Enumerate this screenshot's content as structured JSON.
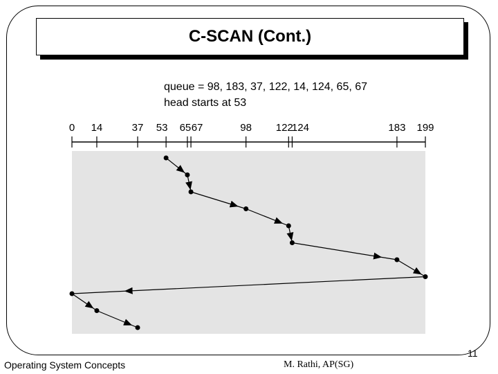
{
  "slide": {
    "title": "C-SCAN (Cont.)",
    "footer_left": "Operating System Concepts",
    "footer_center": "M. Rathi, AP(SG)",
    "page_number": "11"
  },
  "diagram": {
    "queue_text": "queue = 98, 183, 37, 122, 14, 124, 65, 67",
    "head_text": "head starts at 53",
    "cylinder_min": 0,
    "cylinder_max": 199,
    "tick_labels": [
      "0",
      "14",
      "37",
      "53",
      "65",
      "67",
      "98",
      "122",
      "124",
      "183",
      "199"
    ],
    "path": [
      53,
      65,
      67,
      98,
      122,
      124,
      183,
      199,
      0,
      14,
      37
    ],
    "colors": {
      "area": "#e4e4e4",
      "line": "#000000"
    }
  }
}
